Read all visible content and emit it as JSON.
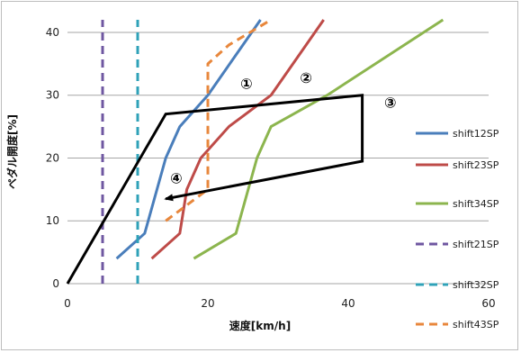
{
  "chart_data": {
    "type": "line",
    "title": "",
    "xlabel": "速度[km/h]",
    "ylabel": "ペダル開度[%]",
    "xlim": [
      0,
      60
    ],
    "ylim": [
      0,
      42
    ],
    "xticks": [
      "0",
      "20",
      "40",
      "60"
    ],
    "yticks": [
      "0",
      "10",
      "20",
      "30",
      "40"
    ],
    "grid": "horizontal",
    "legend_position": "right",
    "series": [
      {
        "name": "shift12SP",
        "color": "#4a7ebb",
        "dash": "solid",
        "x": [
          7,
          7,
          11,
          14,
          16,
          20,
          27.5
        ],
        "y": [
          4,
          4,
          8,
          20,
          25,
          30,
          42
        ]
      },
      {
        "name": "shift23SP",
        "color": "#be4b48",
        "dash": "solid",
        "x": [
          12,
          12,
          16,
          17,
          19,
          23,
          29,
          36.5
        ],
        "y": [
          4,
          4,
          8,
          15,
          20,
          25,
          30,
          42
        ]
      },
      {
        "name": "shift34SP",
        "color": "#8cb54e",
        "dash": "solid",
        "x": [
          18,
          18,
          24,
          27,
          29,
          37,
          53.5
        ],
        "y": [
          4,
          4,
          8,
          20,
          25,
          30,
          42
        ]
      },
      {
        "name": "shift21SP",
        "color": "#6f57a1",
        "dash": "dashed",
        "x": [
          5,
          5
        ],
        "y": [
          0,
          42
        ]
      },
      {
        "name": "shift32SP",
        "color": "#2fa2b8",
        "dash": "dashed",
        "x": [
          10,
          10
        ],
        "y": [
          0,
          42
        ]
      },
      {
        "name": "shift43SP",
        "color": "#e8873c",
        "dash": "dashed",
        "x": [
          14,
          14,
          17,
          20,
          20,
          23,
          29
        ],
        "y": [
          10,
          10,
          12.5,
          15,
          35,
          38,
          42
        ]
      }
    ],
    "annotations": {
      "path_x": [
        0,
        14,
        42,
        42,
        14
      ],
      "path_y": [
        0,
        27,
        30,
        19.5,
        13.5
      ],
      "labels": [
        {
          "text": "①",
          "x": 25.5,
          "y": 31
        },
        {
          "text": "②",
          "x": 34,
          "y": 32
        },
        {
          "text": "③",
          "x": 46,
          "y": 28
        },
        {
          "text": "④",
          "x": 15.5,
          "y": 16
        }
      ]
    }
  }
}
